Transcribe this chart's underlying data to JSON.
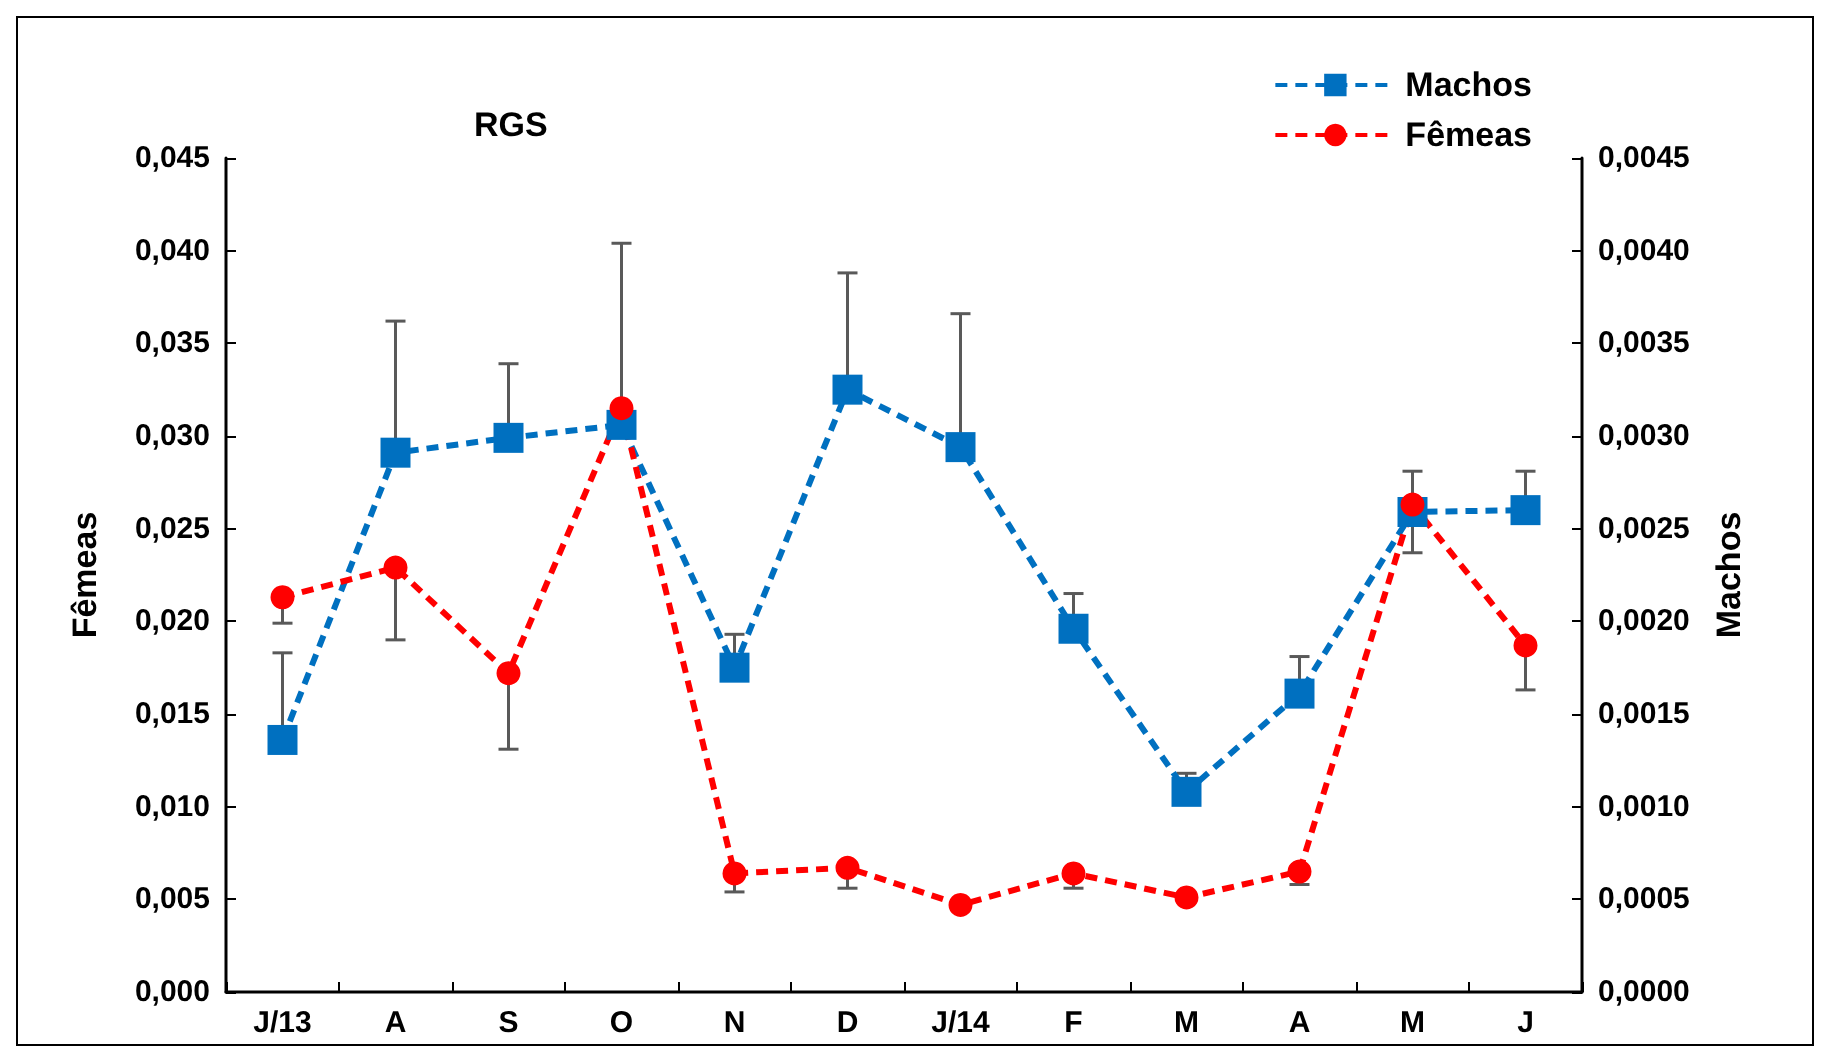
{
  "chart_data": {
    "type": "line",
    "title": "RGS",
    "ylabel": "Fêmeas",
    "y2label": "Machos",
    "categories": [
      "J/13",
      "A",
      "S",
      "O",
      "N",
      "D",
      "J/14",
      "F",
      "M",
      "A",
      "M",
      "J"
    ],
    "series": [
      {
        "name": "Machos",
        "color": "#0070c0",
        "axis": "y2",
        "marker": "square",
        "line_style": "dashed",
        "values": [
          0.00136,
          0.00291,
          0.00299,
          0.00306,
          0.00175,
          0.00325,
          0.00294,
          0.00196,
          0.00108,
          0.00161,
          0.00259,
          0.0026
        ],
        "errors": [
          [
            0.00136,
            0.00183
          ],
          [
            0.00291,
            0.00362
          ],
          [
            0.00299,
            0.00339
          ],
          [
            0.00306,
            0.00404
          ],
          [
            0.00175,
            0.00193
          ],
          [
            0.00325,
            0.00388
          ],
          [
            0.00294,
            0.00366
          ],
          [
            0.00196,
            0.00215
          ],
          [
            0.00108,
            0.00118
          ],
          [
            0.00161,
            0.00181
          ],
          [
            0.00259,
            0.00281
          ],
          [
            0.0026,
            0.00281
          ]
        ]
      },
      {
        "name": "Fêmeas",
        "color": "#ff0000",
        "axis": "y",
        "marker": "circle",
        "line_style": "dashed",
        "values": [
          0.0213,
          0.0229,
          0.0172,
          0.0315,
          0.0064,
          0.0067,
          0.0047,
          0.0064,
          0.0051,
          0.0065,
          0.0263,
          0.0187
        ],
        "errors": [
          [
            0.0199,
            0.0213
          ],
          [
            0.019,
            0.0229
          ],
          [
            0.0131,
            0.0172
          ],
          null,
          [
            0.0054,
            0.0064
          ],
          [
            0.0056,
            0.0067
          ],
          null,
          [
            0.0056,
            0.0064
          ],
          null,
          [
            0.0058,
            0.0065
          ],
          [
            0.0237,
            0.0263
          ],
          [
            0.0163,
            0.0187
          ]
        ]
      }
    ],
    "ylim": [
      0,
      0.045
    ],
    "yticks": [
      {
        "value": 0,
        "label": "0,000"
      },
      {
        "value": 0.005,
        "label": "0,005"
      },
      {
        "value": 0.01,
        "label": "0,010"
      },
      {
        "value": 0.015,
        "label": "0,015"
      },
      {
        "value": 0.02,
        "label": "0,020"
      },
      {
        "value": 0.025,
        "label": "0,025"
      },
      {
        "value": 0.03,
        "label": "0,030"
      },
      {
        "value": 0.035,
        "label": "0,035"
      },
      {
        "value": 0.04,
        "label": "0,040"
      },
      {
        "value": 0.045,
        "label": "0,045"
      }
    ],
    "y2lim": [
      0,
      0.0045
    ],
    "y2ticks": [
      {
        "value": 0,
        "label": "0,0000"
      },
      {
        "value": 0.0005,
        "label": "0,0005"
      },
      {
        "value": 0.001,
        "label": "0,0010"
      },
      {
        "value": 0.0015,
        "label": "0,0015"
      },
      {
        "value": 0.002,
        "label": "0,0020"
      },
      {
        "value": 0.0025,
        "label": "0,0025"
      },
      {
        "value": 0.003,
        "label": "0,0030"
      },
      {
        "value": 0.0035,
        "label": "0,0035"
      },
      {
        "value": 0.004,
        "label": "0,0040"
      },
      {
        "value": 0.0045,
        "label": "0,0045"
      }
    ],
    "grid": false,
    "legend": "top right"
  }
}
